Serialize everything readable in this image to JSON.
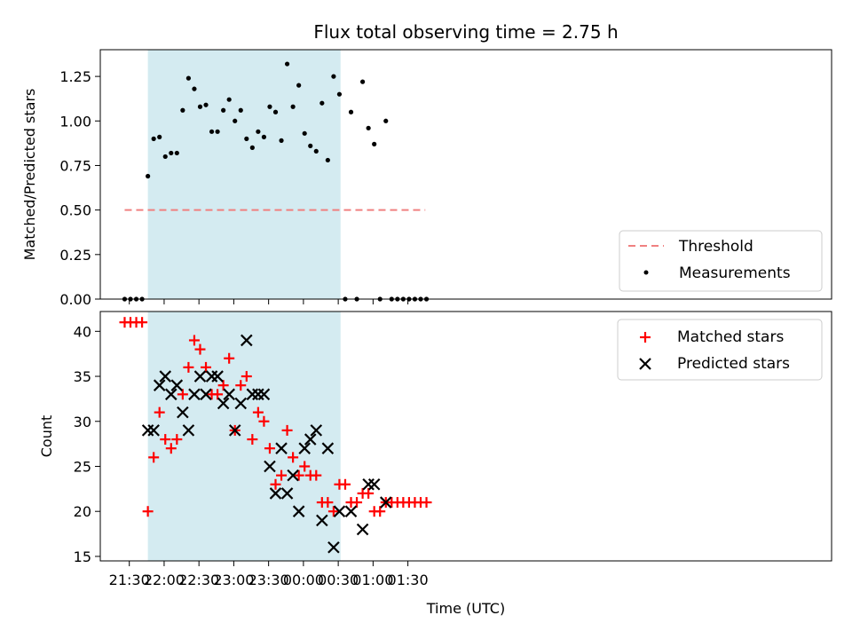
{
  "chart_data": [
    {
      "type": "scatter",
      "title": "Flux total observing time = 2.75 h",
      "ylabel": "Matched/Predicted stars",
      "xlabel": "",
      "ylim": [
        0,
        1.4
      ],
      "yticks": [
        0.0,
        0.25,
        0.5,
        0.75,
        1.0,
        1.25
      ],
      "ytick_labels": [
        "0.00",
        "0.25",
        "0.50",
        "0.75",
        "1.00",
        "1.25"
      ],
      "xlim_minutes": [
        -55,
        575
      ],
      "shaded_region": {
        "start": "21:46",
        "end": "00:32",
        "color": "#d4ebf1"
      },
      "legend_position": "lower-right",
      "threshold": {
        "name": "Threshold",
        "value": 0.5,
        "x_start": "21:26",
        "x_end": "01:45",
        "color": "#f08080"
      },
      "series": [
        {
          "name": "Measurements",
          "color": "#000000",
          "points": [
            [
              "21:26",
              0.0
            ],
            [
              "21:31",
              0.0
            ],
            [
              "21:36",
              0.0
            ],
            [
              "21:41",
              0.0
            ],
            [
              "21:46",
              0.69
            ],
            [
              "21:51",
              0.9
            ],
            [
              "21:56",
              0.91
            ],
            [
              "22:01",
              0.8
            ],
            [
              "22:06",
              0.82
            ],
            [
              "22:11",
              0.82
            ],
            [
              "22:16",
              1.06
            ],
            [
              "22:21",
              1.24
            ],
            [
              "22:26",
              1.18
            ],
            [
              "22:31",
              1.08
            ],
            [
              "22:36",
              1.09
            ],
            [
              "22:41",
              0.94
            ],
            [
              "22:46",
              0.94
            ],
            [
              "22:51",
              1.06
            ],
            [
              "22:56",
              1.12
            ],
            [
              "23:01",
              1.0
            ],
            [
              "23:06",
              1.06
            ],
            [
              "23:11",
              0.9
            ],
            [
              "23:16",
              0.85
            ],
            [
              "23:21",
              0.94
            ],
            [
              "23:26",
              0.91
            ],
            [
              "23:31",
              1.08
            ],
            [
              "23:36",
              1.05
            ],
            [
              "23:41",
              0.89
            ],
            [
              "23:46",
              1.32
            ],
            [
              "23:51",
              1.08
            ],
            [
              "23:56",
              1.2
            ],
            [
              "00:01",
              0.93
            ],
            [
              "00:06",
              0.86
            ],
            [
              "00:11",
              0.83
            ],
            [
              "00:16",
              1.1
            ],
            [
              "00:21",
              0.78
            ],
            [
              "00:26",
              1.25
            ],
            [
              "00:31",
              1.15
            ],
            [
              "00:36",
              0.0
            ],
            [
              "00:41",
              1.05
            ],
            [
              "00:46",
              0.0
            ],
            [
              "00:51",
              1.22
            ],
            [
              "00:56",
              0.96
            ],
            [
              "01:01",
              0.87
            ],
            [
              "01:06",
              0.0
            ],
            [
              "01:11",
              1.0
            ],
            [
              "01:16",
              0.0
            ],
            [
              "01:21",
              0.0
            ],
            [
              "01:26",
              0.0
            ],
            [
              "01:31",
              0.0
            ],
            [
              "01:36",
              0.0
            ],
            [
              "01:41",
              0.0
            ],
            [
              "01:46",
              0.0
            ]
          ]
        }
      ]
    },
    {
      "type": "scatter",
      "title": "",
      "ylabel": "Count",
      "xlabel": "Time (UTC)",
      "ylim": [
        14.5,
        42.2
      ],
      "yticks": [
        15,
        20,
        25,
        30,
        35,
        40
      ],
      "ytick_labels": [
        "15",
        "20",
        "25",
        "30",
        "35",
        "40"
      ],
      "xlim_minutes": [
        -55,
        575
      ],
      "xticks": [
        "21:30",
        "22:00",
        "22:30",
        "23:00",
        "23:30",
        "00:00",
        "00:30",
        "01:00",
        "01:30"
      ],
      "shaded_region": {
        "start": "21:46",
        "end": "00:32",
        "color": "#d4ebf1"
      },
      "legend_position": "upper-right",
      "series": [
        {
          "name": "Matched stars",
          "marker": "plus",
          "color": "#ff0000",
          "points": [
            [
              "21:26",
              41
            ],
            [
              "21:31",
              41
            ],
            [
              "21:36",
              41
            ],
            [
              "21:41",
              41
            ],
            [
              "21:46",
              20
            ],
            [
              "21:51",
              26
            ],
            [
              "21:56",
              31
            ],
            [
              "22:01",
              28
            ],
            [
              "22:06",
              27
            ],
            [
              "22:11",
              28
            ],
            [
              "22:16",
              33
            ],
            [
              "22:21",
              36
            ],
            [
              "22:26",
              39
            ],
            [
              "22:31",
              38
            ],
            [
              "22:36",
              36
            ],
            [
              "22:41",
              33
            ],
            [
              "22:46",
              33
            ],
            [
              "22:51",
              34
            ],
            [
              "22:56",
              37
            ],
            [
              "23:01",
              29
            ],
            [
              "23:06",
              34
            ],
            [
              "23:11",
              35
            ],
            [
              "23:16",
              28
            ],
            [
              "23:21",
              31
            ],
            [
              "23:26",
              30
            ],
            [
              "23:31",
              27
            ],
            [
              "23:36",
              23
            ],
            [
              "23:41",
              24
            ],
            [
              "23:46",
              29
            ],
            [
              "23:51",
              26
            ],
            [
              "23:56",
              24
            ],
            [
              "00:01",
              25
            ],
            [
              "00:06",
              24
            ],
            [
              "00:11",
              24
            ],
            [
              "00:16",
              21
            ],
            [
              "00:21",
              21
            ],
            [
              "00:26",
              20
            ],
            [
              "00:31",
              23
            ],
            [
              "00:36",
              23
            ],
            [
              "00:41",
              21
            ],
            [
              "00:46",
              21
            ],
            [
              "00:51",
              22
            ],
            [
              "00:56",
              22
            ],
            [
              "01:01",
              20
            ],
            [
              "01:06",
              20
            ],
            [
              "01:11",
              21
            ],
            [
              "01:16",
              21
            ],
            [
              "01:21",
              21
            ],
            [
              "01:26",
              21
            ],
            [
              "01:31",
              21
            ],
            [
              "01:36",
              21
            ],
            [
              "01:41",
              21
            ],
            [
              "01:46",
              21
            ]
          ]
        },
        {
          "name": "Predicted stars",
          "marker": "x",
          "color": "#000000",
          "points": [
            [
              "21:46",
              29
            ],
            [
              "21:51",
              29
            ],
            [
              "21:56",
              34
            ],
            [
              "22:01",
              35
            ],
            [
              "22:06",
              33
            ],
            [
              "22:11",
              34
            ],
            [
              "22:16",
              31
            ],
            [
              "22:21",
              29
            ],
            [
              "22:26",
              33
            ],
            [
              "22:31",
              35
            ],
            [
              "22:36",
              33
            ],
            [
              "22:41",
              35
            ],
            [
              "22:46",
              35
            ],
            [
              "22:51",
              32
            ],
            [
              "22:56",
              33
            ],
            [
              "23:01",
              29
            ],
            [
              "23:06",
              32
            ],
            [
              "23:11",
              39
            ],
            [
              "23:16",
              33
            ],
            [
              "23:21",
              33
            ],
            [
              "23:26",
              33
            ],
            [
              "23:31",
              25
            ],
            [
              "23:36",
              22
            ],
            [
              "23:41",
              27
            ],
            [
              "23:46",
              22
            ],
            [
              "23:51",
              24
            ],
            [
              "23:56",
              20
            ],
            [
              "00:01",
              27
            ],
            [
              "00:06",
              28
            ],
            [
              "00:11",
              29
            ],
            [
              "00:16",
              19
            ],
            [
              "00:21",
              27
            ],
            [
              "00:26",
              16
            ],
            [
              "00:31",
              20
            ],
            [
              "00:41",
              20
            ],
            [
              "00:51",
              18
            ],
            [
              "00:56",
              23
            ],
            [
              "01:01",
              23
            ],
            [
              "01:11",
              21
            ]
          ]
        }
      ]
    }
  ]
}
